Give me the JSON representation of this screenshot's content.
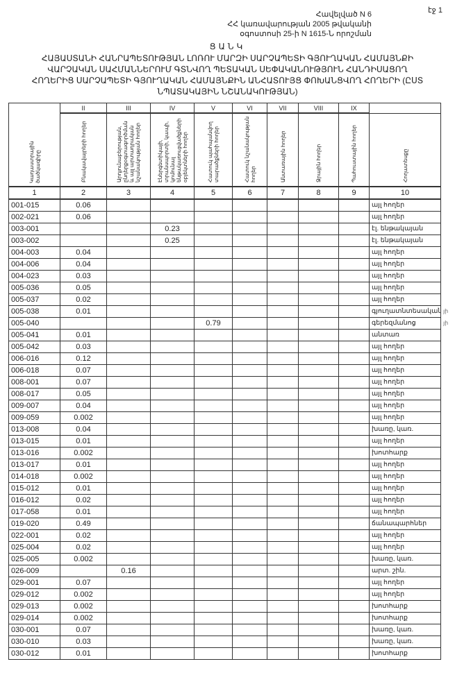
{
  "page_label": "էջ 1",
  "header": {
    "line1": "Հավելված N 6",
    "line2": "ՀՀ կառավարության 2005 թվականի",
    "line3": "օգոստոսի 25-ի N 1615-Ն որոշման"
  },
  "title": {
    "heading": "ՑԱՆԿ",
    "line1": "ՀԱՅԱՍՏԱՆԻ ՀԱՆՐԱՊԵՏՈՒԹՅԱՆ ԼՈՌՈՒ ՄԱՐԶԻ ՍԱՐՉԱՊԵՏԻ ԳՅՈՒՂԱԿԱՆ ՀԱՄԱՅՆՔԻ",
    "line2": "ՎԱՐՉԱԿԱՆ ՍԱՀՄԱՆՆԵՐՈՒՄ ԳՏՆՎՈՂ ՊԵՏԱԿԱՆ ՍԵՓԱԿԱՆՈՒԹՅՈՒՆ ՀԱՆԴԻՍԱՑՈՂ",
    "line3": "ՀՈՂԵՐԻՑ ՍԱՐՉԱՊԵՏԻ ԳՅՈՒՂԱԿԱՆ ՀԱՄԱՅՆՔԻՆ ԱՆՀԱՏՈՒՅՑ ՓՈԽԱՆՑՎՈՂ ՀՈՂԵՐԻ (ԸՍՏ",
    "line4": "ՆՊԱՏԱԿԱՅԻՆ ՆՇԱՆԱԿՈՒԹՅԱՆ)"
  },
  "table": {
    "roman": [
      "",
      "II",
      "III",
      "IV",
      "V",
      "VI",
      "VII",
      "VIII",
      "IX",
      ""
    ],
    "labels": [
      "Կադաստրային ծածկագիրը",
      "Բնակավայրերի հողեր",
      "Արդյունաբերության, ընդերքօգտագործման և այլ արտադրական նշանակության հողեր",
      "Էներգետիկայի, տրանսպորտի, կապի, կոմունալ ենթակառուցվածքների օբյեկտների հողեր",
      "Հատուկ պահպանվող տարածքների հողեր",
      "Հատուկ նշանակության հողեր",
      "Անտառային հողեր",
      "Ջրային հողեր",
      "Պահուստային հողեր",
      "Հողատեսքը"
    ],
    "numbers": [
      "1",
      "2",
      "3",
      "4",
      "5",
      "6",
      "7",
      "8",
      "9",
      "10"
    ],
    "rows": [
      {
        "code": "001-015",
        "c2": "0.06",
        "c3": "",
        "c4": "",
        "c5": "",
        "type": "այլ հողեր"
      },
      {
        "code": "002-021",
        "c2": "0.06",
        "c3": "",
        "c4": "",
        "c5": "",
        "type": "այլ հողեր"
      },
      {
        "code": "003-001",
        "c2": "",
        "c3": "",
        "c4": "0.23",
        "c5": "",
        "type": "էլ. ենթակայան"
      },
      {
        "code": "003-002",
        "c2": "",
        "c3": "",
        "c4": "0.25",
        "c5": "",
        "type": "էլ. ենթակայան"
      },
      {
        "code": "004-003",
        "c2": "0.04",
        "c3": "",
        "c4": "",
        "c5": "",
        "type": "այլ հողեր"
      },
      {
        "code": "004-006",
        "c2": "0.04",
        "c3": "",
        "c4": "",
        "c5": "",
        "type": "այլ հողեր"
      },
      {
        "code": "004-023",
        "c2": "0.03",
        "c3": "",
        "c4": "",
        "c5": "",
        "type": "այլ հողեր"
      },
      {
        "code": "005-036",
        "c2": "0.05",
        "c3": "",
        "c4": "",
        "c5": "",
        "type": "այլ հողեր"
      },
      {
        "code": "005-037",
        "c2": "0.02",
        "c3": "",
        "c4": "",
        "c5": "",
        "type": "այլ հողեր"
      },
      {
        "code": "005-038",
        "c2": "0.01",
        "c3": "",
        "c4": "",
        "c5": "",
        "type": "գյուղատնտեսական",
        "note": "յի"
      },
      {
        "code": "005-040",
        "c2": "",
        "c3": "",
        "c4": "",
        "c5": "0.79",
        "type": "գերեզմանոց",
        "note": "յի"
      },
      {
        "code": "005-041",
        "c2": "0.01",
        "c3": "",
        "c4": "",
        "c5": "",
        "type": "անտառ"
      },
      {
        "code": "005-042",
        "c2": "0.03",
        "c3": "",
        "c4": "",
        "c5": "",
        "type": "այլ հողեր"
      },
      {
        "code": "006-016",
        "c2": "0.12",
        "c3": "",
        "c4": "",
        "c5": "",
        "type": "այլ հողեր"
      },
      {
        "code": "006-018",
        "c2": "0.07",
        "c3": "",
        "c4": "",
        "c5": "",
        "type": "այլ հողեր"
      },
      {
        "code": "008-001",
        "c2": "0.07",
        "c3": "",
        "c4": "",
        "c5": "",
        "type": "այլ հողեր"
      },
      {
        "code": "008-017",
        "c2": "0.05",
        "c3": "",
        "c4": "",
        "c5": "",
        "type": "այլ հողեր"
      },
      {
        "code": "009-007",
        "c2": "0.04",
        "c3": "",
        "c4": "",
        "c5": "",
        "type": "այլ հողեր"
      },
      {
        "code": "009-059",
        "c2": "0.002",
        "c3": "",
        "c4": "",
        "c5": "",
        "type": "այլ հողեր"
      },
      {
        "code": "013-008",
        "c2": "0.04",
        "c3": "",
        "c4": "",
        "c5": "",
        "type": "խառը, կառ."
      },
      {
        "code": "013-015",
        "c2": "0.01",
        "c3": "",
        "c4": "",
        "c5": "",
        "type": "այլ հողեր"
      },
      {
        "code": "013-016",
        "c2": "0.002",
        "c3": "",
        "c4": "",
        "c5": "",
        "type": "խոտհարք"
      },
      {
        "code": "013-017",
        "c2": "0.01",
        "c3": "",
        "c4": "",
        "c5": "",
        "type": "այլ հողեր"
      },
      {
        "code": "014-018",
        "c2": "0.002",
        "c3": "",
        "c4": "",
        "c5": "",
        "type": "այլ հողեր"
      },
      {
        "code": "015-012",
        "c2": "0.01",
        "c3": "",
        "c4": "",
        "c5": "",
        "type": "այլ հողեր"
      },
      {
        "code": "016-012",
        "c2": "0.02",
        "c3": "",
        "c4": "",
        "c5": "",
        "type": "այլ հողեր"
      },
      {
        "code": "017-058",
        "c2": "0.01",
        "c3": "",
        "c4": "",
        "c5": "",
        "type": "այլ հողեր"
      },
      {
        "code": "019-020",
        "c2": "0.49",
        "c3": "",
        "c4": "",
        "c5": "",
        "type": "ճանապարհներ"
      },
      {
        "code": "022-001",
        "c2": "0.02",
        "c3": "",
        "c4": "",
        "c5": "",
        "type": "այլ հողեր"
      },
      {
        "code": "025-004",
        "c2": "0.02",
        "c3": "",
        "c4": "",
        "c5": "",
        "type": "այլ հողեր"
      },
      {
        "code": "025-005",
        "c2": "0.002",
        "c3": "",
        "c4": "",
        "c5": "",
        "type": "խառը, կառ."
      },
      {
        "code": "026-009",
        "c2": "",
        "c3": "0.16",
        "c4": "",
        "c5": "",
        "type": "արտ. շին."
      },
      {
        "code": "029-001",
        "c2": "0.07",
        "c3": "",
        "c4": "",
        "c5": "",
        "type": "այլ հողեր"
      },
      {
        "code": "029-012",
        "c2": "0.002",
        "c3": "",
        "c4": "",
        "c5": "",
        "type": "այլ հողեր"
      },
      {
        "code": "029-013",
        "c2": "0.002",
        "c3": "",
        "c4": "",
        "c5": "",
        "type": "խոտհարք"
      },
      {
        "code": "029-014",
        "c2": "0.002",
        "c3": "",
        "c4": "",
        "c5": "",
        "type": "խոտհարք"
      },
      {
        "code": "030-001",
        "c2": "0.07",
        "c3": "",
        "c4": "",
        "c5": "",
        "type": "խառը, կառ."
      },
      {
        "code": "030-010",
        "c2": "0.03",
        "c3": "",
        "c4": "",
        "c5": "",
        "type": "խառը, կառ."
      },
      {
        "code": "030-012",
        "c2": "0.01",
        "c3": "",
        "c4": "",
        "c5": "",
        "type": "խոտհարք"
      }
    ]
  }
}
